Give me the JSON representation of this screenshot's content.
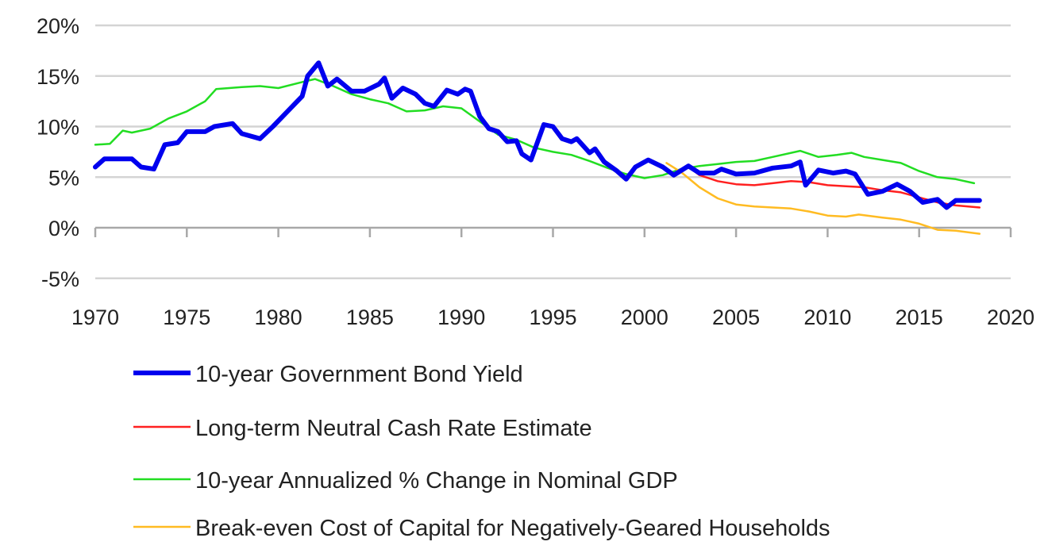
{
  "chart_data": {
    "type": "line",
    "title": "",
    "xlabel": "",
    "ylabel": "",
    "xlim": [
      1970,
      2020
    ],
    "ylim": [
      -5,
      20
    ],
    "x_ticks": [
      "1970",
      "1975",
      "1980",
      "1985",
      "1990",
      "1995",
      "2000",
      "2005",
      "2010",
      "2015",
      "2020"
    ],
    "y_ticks": [
      "20%",
      "15%",
      "10%",
      "5%",
      "0%",
      "-5%"
    ],
    "y_tick_values": [
      20,
      15,
      10,
      5,
      0,
      -5
    ],
    "x_tick_values": [
      1970,
      1975,
      1980,
      1985,
      1990,
      1995,
      2000,
      2005,
      2010,
      2015,
      2020
    ],
    "grid": true,
    "legend_placement": "bottom",
    "series": [
      {
        "name": "10-year Government Bond Yield",
        "color": "#0000ee",
        "width": 6,
        "points": [
          [
            1970,
            6.0
          ],
          [
            1970.5,
            6.8
          ],
          [
            1972,
            6.8
          ],
          [
            1972.5,
            6.0
          ],
          [
            1973.2,
            5.8
          ],
          [
            1973.8,
            8.2
          ],
          [
            1974.5,
            8.4
          ],
          [
            1975,
            9.5
          ],
          [
            1976,
            9.5
          ],
          [
            1976.5,
            10.0
          ],
          [
            1977.5,
            10.3
          ],
          [
            1978,
            9.3
          ],
          [
            1979,
            8.8
          ],
          [
            1979.7,
            10.0
          ],
          [
            1980.5,
            11.5
          ],
          [
            1981.3,
            13.0
          ],
          [
            1981.6,
            15.0
          ],
          [
            1982.2,
            16.3
          ],
          [
            1982.7,
            14.0
          ],
          [
            1983.2,
            14.7
          ],
          [
            1984,
            13.5
          ],
          [
            1984.7,
            13.5
          ],
          [
            1985.5,
            14.2
          ],
          [
            1985.8,
            14.8
          ],
          [
            1986.2,
            12.8
          ],
          [
            1986.8,
            13.8
          ],
          [
            1987.5,
            13.2
          ],
          [
            1988,
            12.3
          ],
          [
            1988.5,
            12.0
          ],
          [
            1989.2,
            13.6
          ],
          [
            1989.8,
            13.2
          ],
          [
            1990.2,
            13.7
          ],
          [
            1990.5,
            13.5
          ],
          [
            1991,
            11.0
          ],
          [
            1991.5,
            9.8
          ],
          [
            1992,
            9.5
          ],
          [
            1992.5,
            8.5
          ],
          [
            1993,
            8.6
          ],
          [
            1993.3,
            7.3
          ],
          [
            1993.8,
            6.7
          ],
          [
            1994.5,
            10.2
          ],
          [
            1995,
            10.0
          ],
          [
            1995.5,
            8.8
          ],
          [
            1996,
            8.5
          ],
          [
            1996.3,
            8.8
          ],
          [
            1997,
            7.4
          ],
          [
            1997.3,
            7.8
          ],
          [
            1997.8,
            6.5
          ],
          [
            1998.5,
            5.6
          ],
          [
            1999,
            4.8
          ],
          [
            1999.5,
            6.0
          ],
          [
            2000.2,
            6.7
          ],
          [
            2001,
            6.0
          ],
          [
            2001.6,
            5.2
          ],
          [
            2002.4,
            6.1
          ],
          [
            2003,
            5.4
          ],
          [
            2003.8,
            5.4
          ],
          [
            2004.2,
            5.8
          ],
          [
            2005,
            5.3
          ],
          [
            2006,
            5.4
          ],
          [
            2007,
            5.9
          ],
          [
            2008,
            6.1
          ],
          [
            2008.5,
            6.5
          ],
          [
            2008.8,
            4.2
          ],
          [
            2009.5,
            5.7
          ],
          [
            2010.3,
            5.4
          ],
          [
            2011,
            5.6
          ],
          [
            2011.5,
            5.3
          ],
          [
            2012.2,
            3.3
          ],
          [
            2013,
            3.6
          ],
          [
            2013.8,
            4.3
          ],
          [
            2014.5,
            3.6
          ],
          [
            2015.2,
            2.5
          ],
          [
            2016,
            2.8
          ],
          [
            2016.5,
            2.0
          ],
          [
            2017,
            2.7
          ],
          [
            2018,
            2.7
          ],
          [
            2018.3,
            2.7
          ]
        ]
      },
      {
        "name": "Long-term Neutral Cash Rate Estimate",
        "color": "#ff2020",
        "width": 2.5,
        "points": [
          [
            2002.5,
            5.9
          ],
          [
            2003,
            5.2
          ],
          [
            2004,
            4.6
          ],
          [
            2005,
            4.3
          ],
          [
            2006,
            4.2
          ],
          [
            2007,
            4.4
          ],
          [
            2008,
            4.6
          ],
          [
            2009,
            4.5
          ],
          [
            2010,
            4.2
          ],
          [
            2011,
            4.1
          ],
          [
            2012,
            4.0
          ],
          [
            2013,
            3.7
          ],
          [
            2014,
            3.5
          ],
          [
            2015,
            3.0
          ],
          [
            2016,
            2.5
          ],
          [
            2017,
            2.2
          ],
          [
            2018.3,
            2.0
          ]
        ]
      },
      {
        "name": "10-year Annualized % Change in Nominal GDP",
        "color": "#22dd22",
        "width": 2.5,
        "points": [
          [
            1970,
            8.2
          ],
          [
            1970.8,
            8.3
          ],
          [
            1971.5,
            9.6
          ],
          [
            1972,
            9.4
          ],
          [
            1973,
            9.8
          ],
          [
            1974,
            10.8
          ],
          [
            1975,
            11.5
          ],
          [
            1976,
            12.5
          ],
          [
            1976.6,
            13.7
          ],
          [
            1978,
            13.9
          ],
          [
            1979,
            14.0
          ],
          [
            1980,
            13.8
          ],
          [
            1981.3,
            14.4
          ],
          [
            1982,
            14.7
          ],
          [
            1983,
            14.0
          ],
          [
            1984,
            13.2
          ],
          [
            1985,
            12.7
          ],
          [
            1986,
            12.3
          ],
          [
            1987,
            11.5
          ],
          [
            1988,
            11.6
          ],
          [
            1989,
            12.0
          ],
          [
            1990,
            11.8
          ],
          [
            1991,
            10.5
          ],
          [
            1992,
            9.2
          ],
          [
            1993,
            8.7
          ],
          [
            1994,
            7.9
          ],
          [
            1995,
            7.5
          ],
          [
            1996,
            7.2
          ],
          [
            1997,
            6.6
          ],
          [
            1998,
            5.9
          ],
          [
            1999,
            5.3
          ],
          [
            2000,
            4.9
          ],
          [
            2001,
            5.2
          ],
          [
            2002,
            5.8
          ],
          [
            2003,
            6.1
          ],
          [
            2004,
            6.3
          ],
          [
            2005,
            6.5
          ],
          [
            2006,
            6.6
          ],
          [
            2007,
            7.0
          ],
          [
            2008.5,
            7.6
          ],
          [
            2009.5,
            7.0
          ],
          [
            2010.5,
            7.2
          ],
          [
            2011.3,
            7.4
          ],
          [
            2012,
            7.0
          ],
          [
            2013,
            6.7
          ],
          [
            2014,
            6.4
          ],
          [
            2015,
            5.6
          ],
          [
            2016,
            5.0
          ],
          [
            2017,
            4.8
          ],
          [
            2018,
            4.4
          ]
        ]
      },
      {
        "name": "Break-even Cost of Capital for Negatively-Geared Households",
        "color": "#ffbb22",
        "width": 2.5,
        "points": [
          [
            2001.2,
            6.4
          ],
          [
            2002,
            5.5
          ],
          [
            2003,
            4.0
          ],
          [
            2004,
            2.9
          ],
          [
            2005,
            2.3
          ],
          [
            2006,
            2.1
          ],
          [
            2007,
            2.0
          ],
          [
            2008,
            1.9
          ],
          [
            2009,
            1.6
          ],
          [
            2010,
            1.2
          ],
          [
            2011,
            1.1
          ],
          [
            2011.7,
            1.3
          ],
          [
            2013,
            1.0
          ],
          [
            2014,
            0.8
          ],
          [
            2015,
            0.4
          ],
          [
            2016,
            -0.2
          ],
          [
            2017,
            -0.3
          ],
          [
            2018.3,
            -0.6
          ]
        ]
      }
    ]
  }
}
